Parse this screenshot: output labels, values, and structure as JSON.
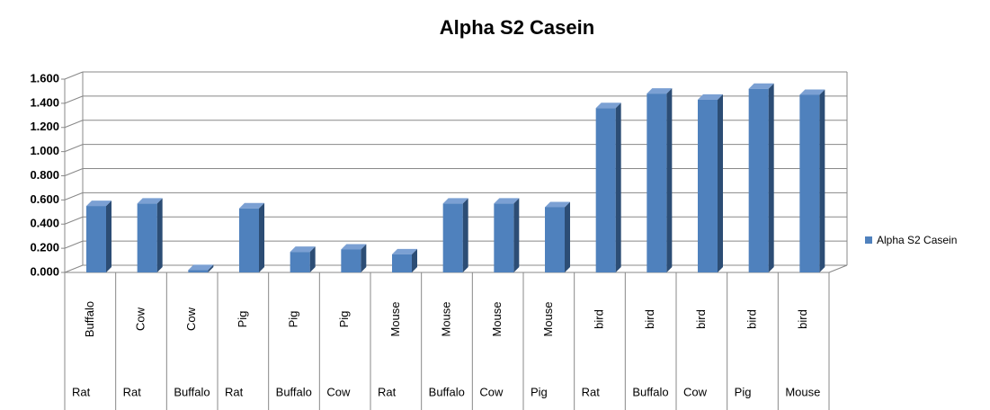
{
  "chart_data": {
    "type": "bar3d",
    "title": "Alpha S2 Casein",
    "categories": [
      "Buffalo",
      "Cow",
      "Cow",
      "Pig",
      "Pig",
      "Pig",
      "Mouse",
      "Mouse",
      "Mouse",
      "Mouse",
      "bird",
      "bird",
      "bird",
      "bird",
      "bird"
    ],
    "category_groups": [
      "Rat",
      "Rat",
      "Buffalo",
      "Rat",
      "Buffalo",
      "Cow",
      "Rat",
      "Buffalo",
      "Cow",
      "Pig",
      "Rat",
      "Buffalo",
      "Cow",
      "Pig",
      "Mouse"
    ],
    "series": [
      {
        "name": "Alpha S2 Casein",
        "color": "#4f81bd",
        "values": [
          0.55,
          0.57,
          0.02,
          0.53,
          0.17,
          0.19,
          0.15,
          0.57,
          0.57,
          0.54,
          1.36,
          1.48,
          1.43,
          1.52,
          1.47
        ]
      }
    ],
    "ylim": [
      0,
      1.6
    ],
    "yticks": [
      {
        "value": 0,
        "label": "0.000"
      },
      {
        "value": 0.2,
        "label": "0.200"
      },
      {
        "value": 0.4,
        "label": "0.400"
      },
      {
        "value": 0.6,
        "label": "0.600"
      },
      {
        "value": 0.8,
        "label": "0.800"
      },
      {
        "value": 1.0,
        "label": "1.000"
      },
      {
        "value": 1.2,
        "label": "1.200"
      },
      {
        "value": 1.4,
        "label": "1.400"
      },
      {
        "value": 1.6,
        "label": "1.600"
      }
    ],
    "grid": true,
    "legend": "right"
  }
}
